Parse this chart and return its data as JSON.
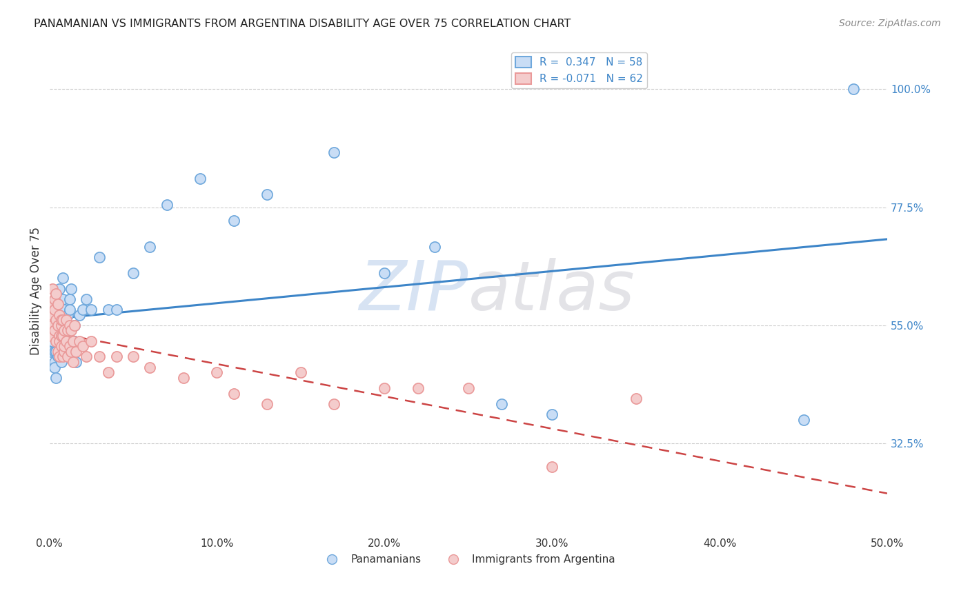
{
  "title": "PANAMANIAN VS IMMIGRANTS FROM ARGENTINA DISABILITY AGE OVER 75 CORRELATION CHART",
  "source": "Source: ZipAtlas.com",
  "ylabel_text": "Disability Age Over 75",
  "xmin": 0.0,
  "xmax": 0.5,
  "xtick_labels": [
    "0.0%",
    "10.0%",
    "20.0%",
    "30.0%",
    "40.0%",
    "50.0%"
  ],
  "xtick_vals": [
    0.0,
    0.1,
    0.2,
    0.3,
    0.4,
    0.5
  ],
  "ytick_labels": [
    "32.5%",
    "55.0%",
    "77.5%",
    "100.0%"
  ],
  "ytick_vals": [
    0.325,
    0.55,
    0.775,
    1.0
  ],
  "blue_fill": "#c9ddf5",
  "blue_edge": "#6fa8dc",
  "pink_fill": "#f4cccc",
  "pink_edge": "#ea9999",
  "blue_line_color": "#3d85c8",
  "pink_line_color": "#cc4444",
  "legend_blue_label": "R =  0.347   N = 58",
  "legend_pink_label": "R = -0.071   N = 62",
  "legend_blue_series": "Panamanians",
  "legend_pink_series": "Immigrants from Argentina",
  "R_blue": 0.347,
  "R_pink": -0.071,
  "blue_scatter_x": [
    0.001,
    0.001,
    0.002,
    0.002,
    0.002,
    0.003,
    0.003,
    0.003,
    0.003,
    0.004,
    0.004,
    0.004,
    0.005,
    0.005,
    0.005,
    0.005,
    0.005,
    0.006,
    0.006,
    0.006,
    0.007,
    0.007,
    0.007,
    0.008,
    0.008,
    0.008,
    0.009,
    0.009,
    0.01,
    0.01,
    0.01,
    0.011,
    0.012,
    0.012,
    0.013,
    0.015,
    0.015,
    0.016,
    0.018,
    0.02,
    0.022,
    0.025,
    0.03,
    0.035,
    0.04,
    0.05,
    0.06,
    0.07,
    0.09,
    0.11,
    0.13,
    0.17,
    0.2,
    0.23,
    0.27,
    0.3,
    0.45,
    0.48
  ],
  "blue_scatter_y": [
    0.5,
    0.52,
    0.54,
    0.56,
    0.52,
    0.48,
    0.5,
    0.53,
    0.47,
    0.5,
    0.54,
    0.45,
    0.55,
    0.6,
    0.49,
    0.52,
    0.58,
    0.62,
    0.55,
    0.5,
    0.5,
    0.53,
    0.48,
    0.57,
    0.6,
    0.64,
    0.58,
    0.55,
    0.52,
    0.5,
    0.54,
    0.57,
    0.6,
    0.58,
    0.62,
    0.52,
    0.55,
    0.48,
    0.57,
    0.58,
    0.6,
    0.58,
    0.68,
    0.58,
    0.58,
    0.65,
    0.7,
    0.78,
    0.83,
    0.75,
    0.8,
    0.88,
    0.65,
    0.7,
    0.4,
    0.38,
    0.37,
    1.0
  ],
  "pink_scatter_x": [
    0.001,
    0.001,
    0.001,
    0.002,
    0.002,
    0.002,
    0.002,
    0.003,
    0.003,
    0.003,
    0.004,
    0.004,
    0.004,
    0.005,
    0.005,
    0.005,
    0.006,
    0.006,
    0.006,
    0.006,
    0.007,
    0.007,
    0.007,
    0.007,
    0.008,
    0.008,
    0.008,
    0.009,
    0.009,
    0.009,
    0.01,
    0.01,
    0.011,
    0.011,
    0.012,
    0.012,
    0.013,
    0.013,
    0.014,
    0.014,
    0.015,
    0.016,
    0.018,
    0.02,
    0.022,
    0.025,
    0.03,
    0.035,
    0.04,
    0.05,
    0.06,
    0.08,
    0.1,
    0.11,
    0.13,
    0.15,
    0.17,
    0.2,
    0.22,
    0.25,
    0.3,
    0.35
  ],
  "pink_scatter_y": [
    0.53,
    0.56,
    0.58,
    0.62,
    0.59,
    0.55,
    0.57,
    0.6,
    0.54,
    0.58,
    0.52,
    0.56,
    0.61,
    0.5,
    0.55,
    0.59,
    0.53,
    0.57,
    0.49,
    0.52,
    0.55,
    0.51,
    0.56,
    0.53,
    0.49,
    0.56,
    0.53,
    0.5,
    0.54,
    0.51,
    0.52,
    0.56,
    0.49,
    0.54,
    0.51,
    0.55,
    0.5,
    0.54,
    0.48,
    0.52,
    0.55,
    0.5,
    0.52,
    0.51,
    0.49,
    0.52,
    0.49,
    0.46,
    0.49,
    0.49,
    0.47,
    0.45,
    0.46,
    0.42,
    0.4,
    0.46,
    0.4,
    0.43,
    0.43,
    0.43,
    0.28,
    0.41
  ],
  "watermark_zip": "ZIP",
  "watermark_atlas": "atlas",
  "background_color": "#ffffff",
  "grid_color": "#cccccc"
}
